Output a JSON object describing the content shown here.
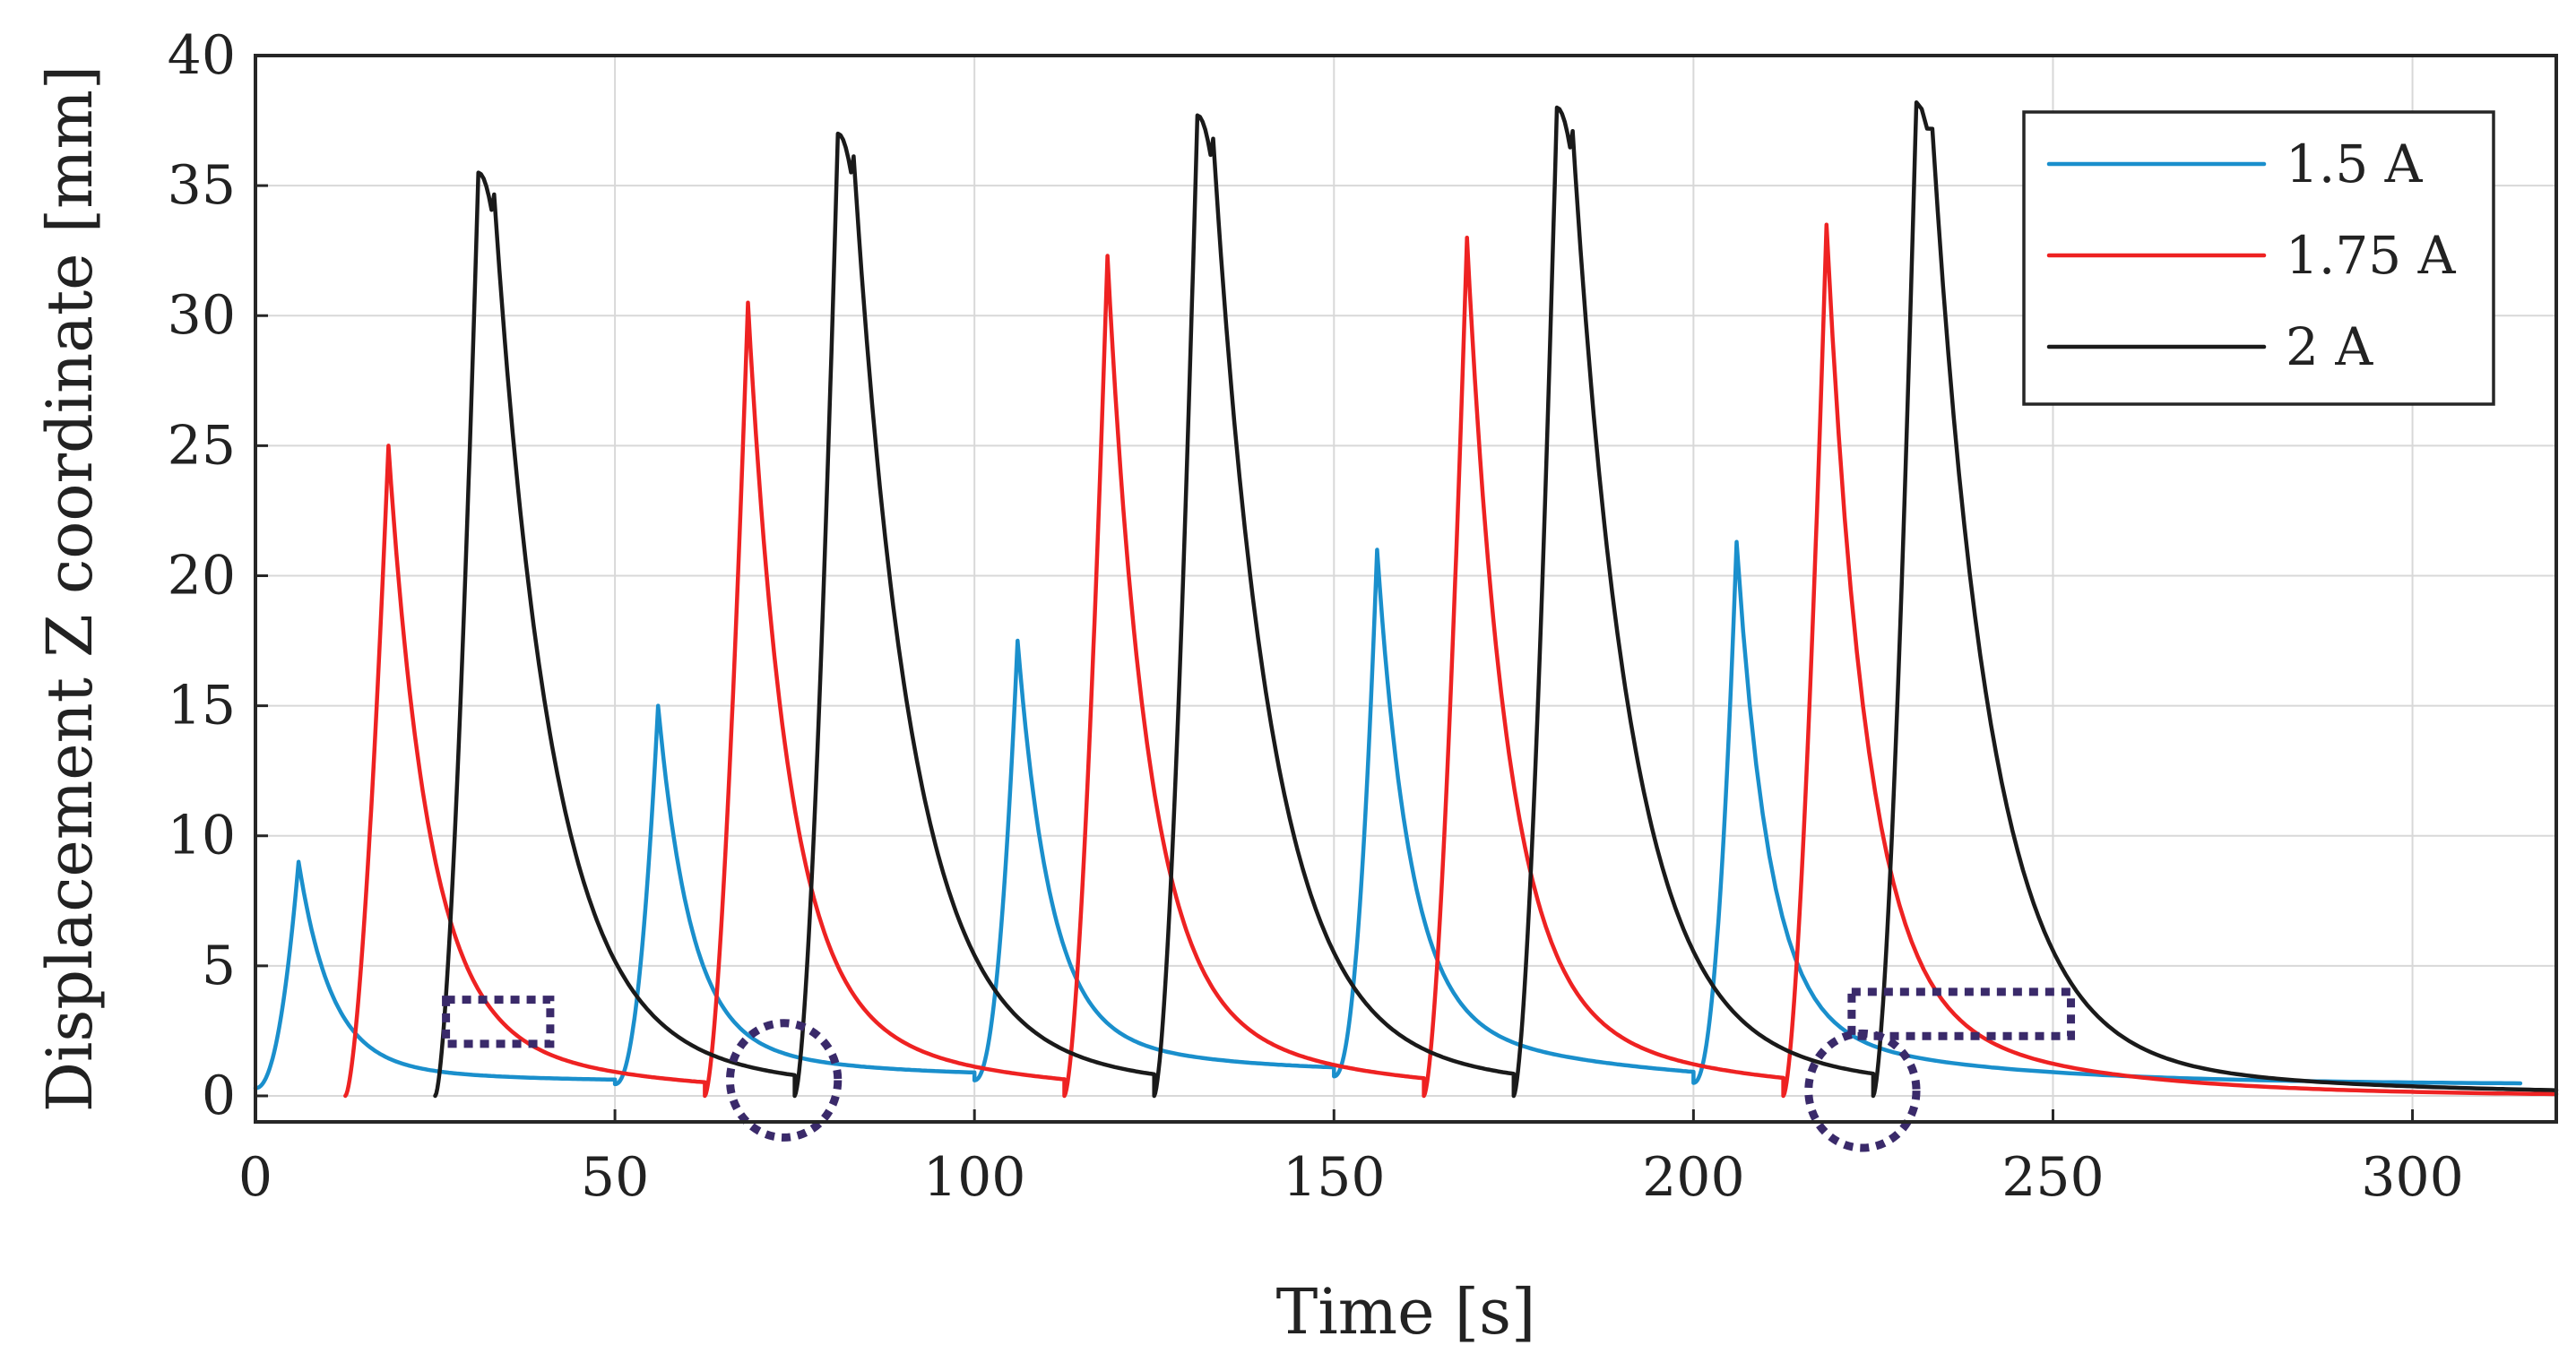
{
  "chart_data": {
    "type": "line",
    "xlabel": "Time [s]",
    "ylabel": "Displacement Z coordinate [mm]",
    "xlim": [
      0,
      320
    ],
    "ylim": [
      -1,
      40
    ],
    "xticks": [
      0,
      50,
      100,
      150,
      200,
      250,
      300
    ],
    "yticks": [
      0,
      5,
      10,
      15,
      20,
      25,
      30,
      35,
      40
    ],
    "grid": true,
    "legend_position": "top-right",
    "series": [
      {
        "name": "1.5 A",
        "color": "#1a8fcc",
        "cycles": [
          {
            "start": 0,
            "peak_t": 6,
            "peak": 9,
            "floor": 0.3
          },
          {
            "start": 50,
            "peak_t": 56,
            "peak": 15,
            "floor": 0.45
          },
          {
            "start": 100,
            "peak_t": 106,
            "peak": 17.5,
            "floor": 0.6
          },
          {
            "start": 150,
            "peak_t": 156,
            "peak": 21,
            "floor": 0.75
          },
          {
            "start": 200,
            "peak_t": 206,
            "peak": 21.3,
            "floor": 0.5
          }
        ],
        "end_t": 315
      },
      {
        "name": "1.75 A",
        "color": "#ee2222",
        "cycles": [
          {
            "start": 12.5,
            "peak_t": 18.5,
            "peak": 25,
            "floor": 0
          },
          {
            "start": 62.5,
            "peak_t": 68.5,
            "peak": 30.5,
            "floor": 0
          },
          {
            "start": 112.5,
            "peak_t": 118.5,
            "peak": 32.3,
            "floor": 0
          },
          {
            "start": 162.5,
            "peak_t": 168.5,
            "peak": 33,
            "floor": 0
          },
          {
            "start": 212.5,
            "peak_t": 218.5,
            "peak": 33.5,
            "floor": 0
          }
        ],
        "end_t": 320
      },
      {
        "name": "2 A",
        "color": "#1a1a1a",
        "cycles": [
          {
            "start": 25,
            "peak_t": 31,
            "peak": 35.5,
            "floor": 0
          },
          {
            "start": 75,
            "peak_t": 81,
            "peak": 37,
            "floor": 0
          },
          {
            "start": 125,
            "peak_t": 131,
            "peak": 37.7,
            "floor": 0
          },
          {
            "start": 175,
            "peak_t": 181,
            "peak": 38,
            "floor": 0
          },
          {
            "start": 225,
            "peak_t": 231,
            "peak": 38.2,
            "floor": 0
          }
        ],
        "end_t": 320
      }
    ],
    "annotations": [
      {
        "shape": "rect",
        "x": [
          26.5,
          41
        ],
        "y": [
          2,
          3.7
        ]
      },
      {
        "shape": "ellipse",
        "cx": 73.5,
        "cy": 0.6,
        "rx": 7.5,
        "ry": 2.2
      },
      {
        "shape": "ellipse",
        "cx": 223.5,
        "cy": 0.2,
        "rx": 7.5,
        "ry": 2.2
      },
      {
        "shape": "rect",
        "x": [
          222,
          252.5
        ],
        "y": [
          2.3,
          4
        ]
      }
    ]
  }
}
